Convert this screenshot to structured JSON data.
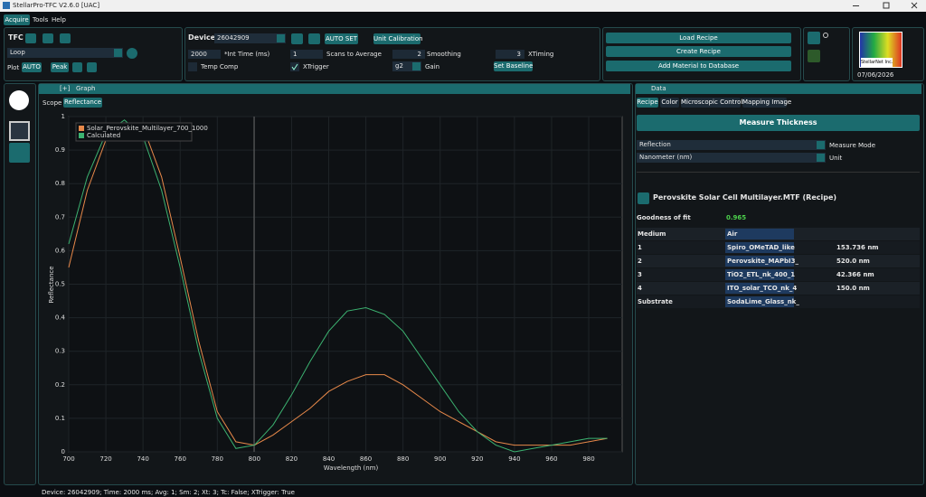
{
  "window": {
    "title": "StellarPro-TFC V2.6.0 [UAC]"
  },
  "menu": [
    "Acquire",
    "Tools",
    "Help"
  ],
  "toolbar": {
    "tfc_label": "TFC",
    "mode": "Loop",
    "plot_label": "Plot",
    "auto": "AUTO",
    "peak": "Peak",
    "device_label": "Device",
    "device": "26042909",
    "auto_set": "AUTO SET",
    "unit_calibration": "Unit Calibration",
    "int_time": "2000",
    "int_time_label": "*Int Time (ms)",
    "scans": "1",
    "scans_label": "Scans to Average",
    "smoothing": "2",
    "smoothing_label": "Smoothing",
    "xtiming": "3",
    "xtiming_label": "XTiming",
    "temp_comp": "Temp Comp",
    "xtrigger": "XTrigger",
    "gain": "g2",
    "gain_label": "Gain",
    "set_baseline": "Set Baseline",
    "load_recipe": "Load Recipe",
    "create_recipe": "Create Recipe",
    "add_material": "Add Material to Database",
    "logo": "StellarNet Inc.",
    "date": "07/06/2026"
  },
  "graph_panel": {
    "expand": "[+]",
    "title": "Graph",
    "tabs": [
      "Scope",
      "Reflectance"
    ]
  },
  "chart_data": {
    "type": "line",
    "x_label": "Wavelength (nm)",
    "y_label": "Reflectance",
    "x": [
      700,
      710,
      720,
      730,
      740,
      750,
      760,
      770,
      780,
      790,
      800,
      810,
      820,
      830,
      840,
      850,
      860,
      870,
      880,
      890,
      900,
      910,
      920,
      930,
      940,
      950,
      960,
      970,
      980,
      990
    ],
    "series": [
      {
        "name": "Solar_Perovskite_Multilayer_700_1000",
        "color": "#e8894a",
        "values": [
          0.55,
          0.78,
          0.93,
          0.97,
          0.97,
          0.82,
          0.58,
          0.33,
          0.12,
          0.03,
          0.02,
          0.05,
          0.09,
          0.13,
          0.18,
          0.21,
          0.23,
          0.23,
          0.2,
          0.16,
          0.12,
          0.09,
          0.06,
          0.03,
          0.02,
          0.02,
          0.02,
          0.02,
          0.03,
          0.04
        ]
      },
      {
        "name": "Calculated",
        "color": "#3cb371",
        "values": [
          0.62,
          0.82,
          0.95,
          0.99,
          0.94,
          0.78,
          0.55,
          0.3,
          0.1,
          0.01,
          0.02,
          0.08,
          0.17,
          0.27,
          0.36,
          0.42,
          0.43,
          0.41,
          0.36,
          0.28,
          0.2,
          0.12,
          0.06,
          0.02,
          0.0,
          0.01,
          0.02,
          0.03,
          0.04,
          0.04
        ]
      }
    ],
    "xlim": [
      700,
      998
    ],
    "ylim": [
      0,
      1
    ],
    "xticks": [
      700,
      720,
      740,
      760,
      780,
      800,
      820,
      840,
      860,
      880,
      900,
      920,
      940,
      960,
      980
    ],
    "yticks": [
      0,
      0.1,
      0.2,
      0.3,
      0.4,
      0.5,
      0.6,
      0.7,
      0.8,
      0.9,
      1
    ],
    "grid": true,
    "legend": "top-left"
  },
  "data_panel": {
    "title": "Data",
    "tabs": [
      "Recipe",
      "Color",
      "Microscopic Control",
      "Mapping Image"
    ],
    "measure": "Measure Thickness",
    "measure_mode": "Reflection",
    "measure_mode_label": "Measure Mode",
    "unit": "Nanometer (nm)",
    "unit_label": "Unit",
    "recipe": "Perovskite Solar Cell Multilayer.MTF (Recipe)",
    "goodness_label": "Goodness of fit",
    "goodness": "0.965",
    "layers": [
      [
        "Medium",
        "Air",
        null
      ],
      [
        "1",
        "Spiro_OMeTAD_like",
        "153.736 nm"
      ],
      [
        "2",
        "Perovskite_MAPbI3_",
        "520.0 nm"
      ],
      [
        "3",
        "TiO2_ETL_nk_400_1",
        "42.366 nm"
      ],
      [
        "4",
        "ITO_solar_TCO_nk_4",
        "150.0 nm"
      ],
      [
        "Substrate",
        "SodaLime_Glass_nk_",
        null
      ]
    ]
  },
  "status": "Device: 26042909; Time: 2000 ms; Avg: 1; Sm: 2; Xt: 3; Tc: False; XTrigger: True"
}
